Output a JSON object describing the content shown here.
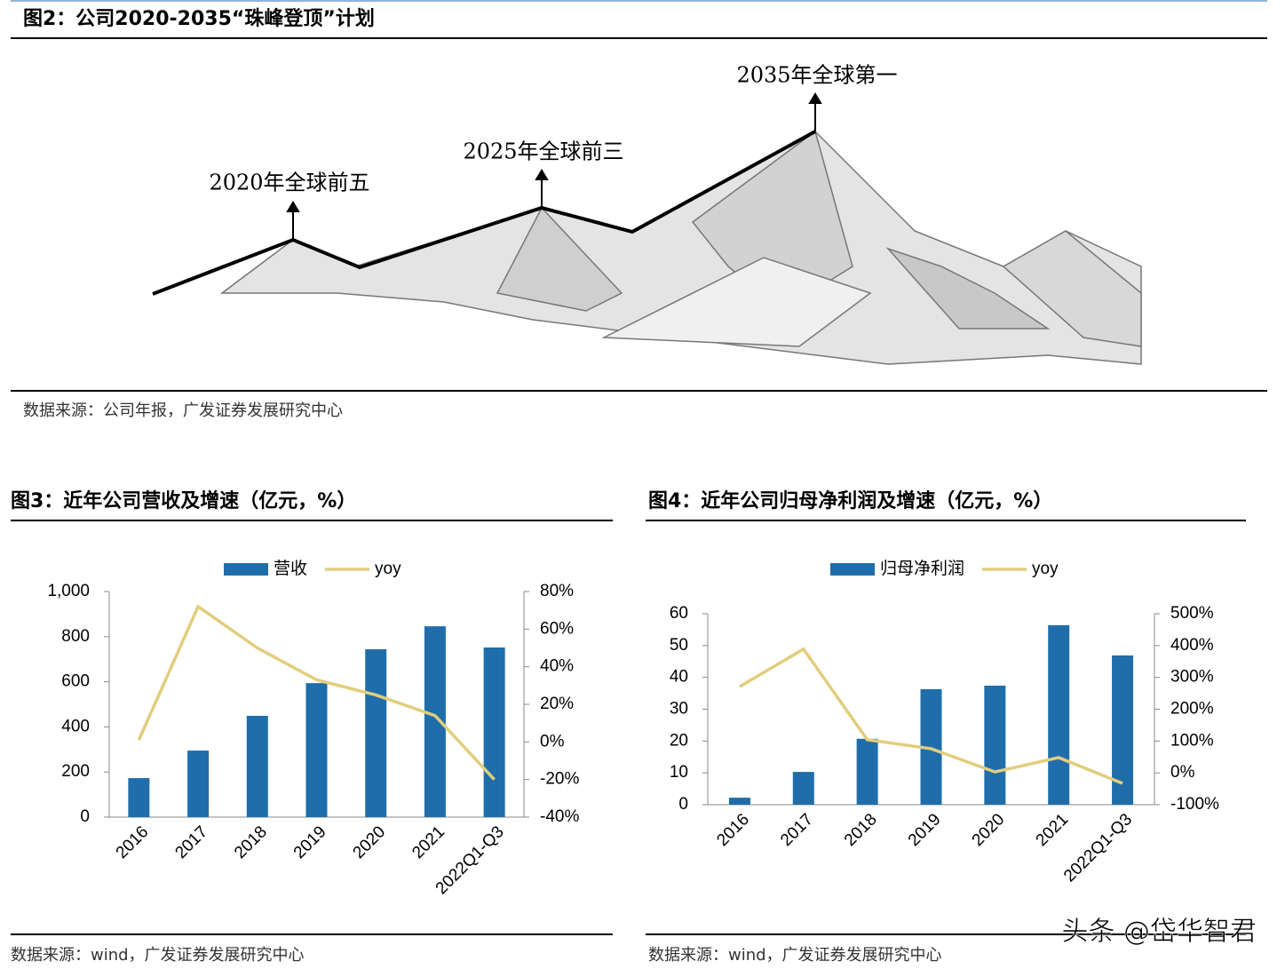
{
  "figure2": {
    "title": "图2：公司2020-2035“珠峰登顶”计划",
    "milestones": [
      "2020年全球前五",
      "2025年全球前三",
      "2035年全球第一"
    ],
    "source": "数据来源：公司年报，广发证券发展研究中心"
  },
  "chart_data": [
    {
      "type": "bar_line",
      "title": "图3：近年公司营收及增速（亿元，%）",
      "categories": [
        "2016",
        "2017",
        "2018",
        "2019",
        "2020",
        "2021",
        "2022Q1-Q3"
      ],
      "series": [
        {
          "name": "营收",
          "color": "#1f6eab",
          "values": [
            173,
            295,
            449,
            594,
            744,
            846,
            752
          ]
        },
        {
          "name": "yoy",
          "color": "#e2cd7c",
          "axis": "y2",
          "values": [
            1,
            72,
            50,
            33,
            25,
            14,
            -20
          ]
        }
      ],
      "ylim": [
        0,
        1000
      ],
      "yticks": [
        0,
        200,
        400,
        600,
        800,
        {
          "value": 1000,
          "label": "1,000"
        }
      ],
      "y2lim": [
        -40,
        80
      ],
      "y2ticks": [
        {
          "value": -40,
          "label": "-40%"
        },
        {
          "value": -20,
          "label": "-20%"
        },
        {
          "value": 0,
          "label": "0%"
        },
        {
          "value": 20,
          "label": "20%"
        },
        {
          "value": 40,
          "label": "40%"
        },
        {
          "value": 60,
          "label": "60%"
        },
        {
          "value": 80,
          "label": "80%"
        }
      ],
      "source": "数据来源：wind，广发证券发展研究中心"
    },
    {
      "type": "bar_line",
      "title": "图4：近年公司归母净利润及增速（亿元，%）",
      "categories": [
        "2016",
        "2017",
        "2018",
        "2019",
        "2020",
        "2021",
        "2022Q1-Q3"
      ],
      "series": [
        {
          "name": "归母净利润",
          "color": "#1f6eab",
          "values": [
            2.2,
            10.3,
            20.7,
            36.3,
            37.4,
            56.4,
            46.9
          ]
        },
        {
          "name": "yoy",
          "color": "#e2cd7c",
          "axis": "y2",
          "values": [
            271,
            389,
            104,
            76,
            3,
            48,
            -33
          ]
        }
      ],
      "ylim": [
        0,
        60
      ],
      "yticks": [
        0,
        10,
        20,
        30,
        40,
        50,
        60
      ],
      "y2lim": [
        -100,
        500
      ],
      "y2ticks": [
        {
          "value": -100,
          "label": "-100%"
        },
        {
          "value": 0,
          "label": "0%"
        },
        {
          "value": 100,
          "label": "100%"
        },
        {
          "value": 200,
          "label": "200%"
        },
        {
          "value": 300,
          "label": "300%"
        },
        {
          "value": 400,
          "label": "400%"
        },
        {
          "value": 500,
          "label": "500%"
        }
      ],
      "source": "数据来源：wind，广发证券发展研究中心"
    }
  ],
  "watermark": "头条 @岱华智君"
}
